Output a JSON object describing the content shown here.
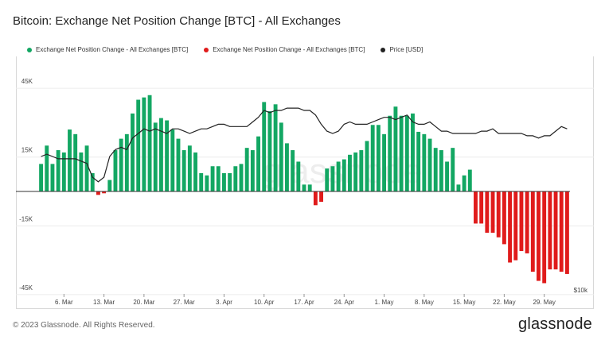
{
  "title": "Bitcoin: Exchange Net Position Change [BTC] - All Exchanges",
  "legend": [
    {
      "label": "Exchange Net Position Change - All Exchanges [BTC]",
      "color": "#13a763"
    },
    {
      "label": "Exchange Net Position Change - All Exchanges [BTC]",
      "color": "#e01b1b"
    },
    {
      "label": "Price [USD]",
      "color": "#222222"
    }
  ],
  "footer": {
    "copyright": "© 2023 Glassnode. All Rights Reserved.",
    "logo": "glassnode"
  },
  "chart_data": {
    "type": "bar",
    "y_ticks": [
      {
        "value": 45000,
        "label": "45K"
      },
      {
        "value": 15000,
        "label": "15K"
      },
      {
        "value": -15000,
        "label": "-15K"
      },
      {
        "value": -45000,
        "label": "-45K"
      }
    ],
    "ylim": [
      -45000,
      47000
    ],
    "secondary_axis_label": "$10k",
    "x_ticks": [
      "6. Mar",
      "13. Mar",
      "20. Mar",
      "27. Mar",
      "3. Apr",
      "10. Apr",
      "17. Apr",
      "24. Apr",
      "1. May",
      "8. May",
      "15. May",
      "22. May",
      "29. May"
    ],
    "x_tick_day_index": [
      4,
      11,
      18,
      25,
      32,
      39,
      46,
      53,
      60,
      67,
      74,
      81,
      88
    ],
    "day_count": 93,
    "positive_color": "#13a763",
    "negative_color": "#e01b1b",
    "price_color": "#222222",
    "values": [
      12000,
      20000,
      12000,
      18000,
      17000,
      27000,
      25000,
      17000,
      20000,
      8000,
      -1500,
      -800,
      5000,
      18000,
      23000,
      25000,
      34000,
      40000,
      41000,
      42000,
      30000,
      32000,
      31000,
      27000,
      23000,
      18000,
      20000,
      17000,
      8000,
      7000,
      11000,
      11000,
      8000,
      8000,
      11000,
      12000,
      19000,
      18000,
      24000,
      39000,
      35000,
      38000,
      30000,
      21000,
      18000,
      13000,
      3000,
      3000,
      -6000,
      -4500,
      10000,
      11000,
      13000,
      14000,
      16000,
      17000,
      18000,
      22000,
      29000,
      29000,
      25000,
      33000,
      37000,
      33000,
      33000,
      34000,
      26000,
      25000,
      23000,
      19000,
      18000,
      13000,
      19000,
      3000,
      7000,
      9500,
      -14000,
      -14000,
      -18000,
      -18000,
      -20000,
      -23000,
      -31000,
      -30000,
      -26000,
      -27000,
      -35000,
      -39000,
      -40000,
      -34000,
      -34000,
      -35000,
      -36000
    ],
    "price_series_name": "Price [USD]",
    "price_index": [
      20,
      21,
      20,
      19,
      19,
      19,
      19,
      18,
      17,
      11,
      9,
      11,
      20,
      23,
      24,
      23,
      28,
      30,
      32,
      31,
      32,
      31,
      30,
      32,
      32,
      31,
      30,
      31,
      32,
      32,
      33,
      34,
      34,
      33,
      33,
      33,
      33,
      35,
      37,
      40,
      39,
      40,
      40,
      41,
      41,
      41,
      40,
      40,
      38,
      34,
      31,
      30,
      31,
      34,
      35,
      34,
      34,
      34,
      35,
      36,
      37,
      37,
      36,
      37,
      38,
      35,
      34,
      34,
      35,
      33,
      31,
      31,
      30,
      30,
      30,
      30,
      30,
      31,
      31,
      32,
      30,
      30,
      30,
      30,
      30,
      29,
      29,
      28,
      29,
      29,
      31,
      33,
      32
    ],
    "price_index_range": [
      0,
      50
    ]
  }
}
